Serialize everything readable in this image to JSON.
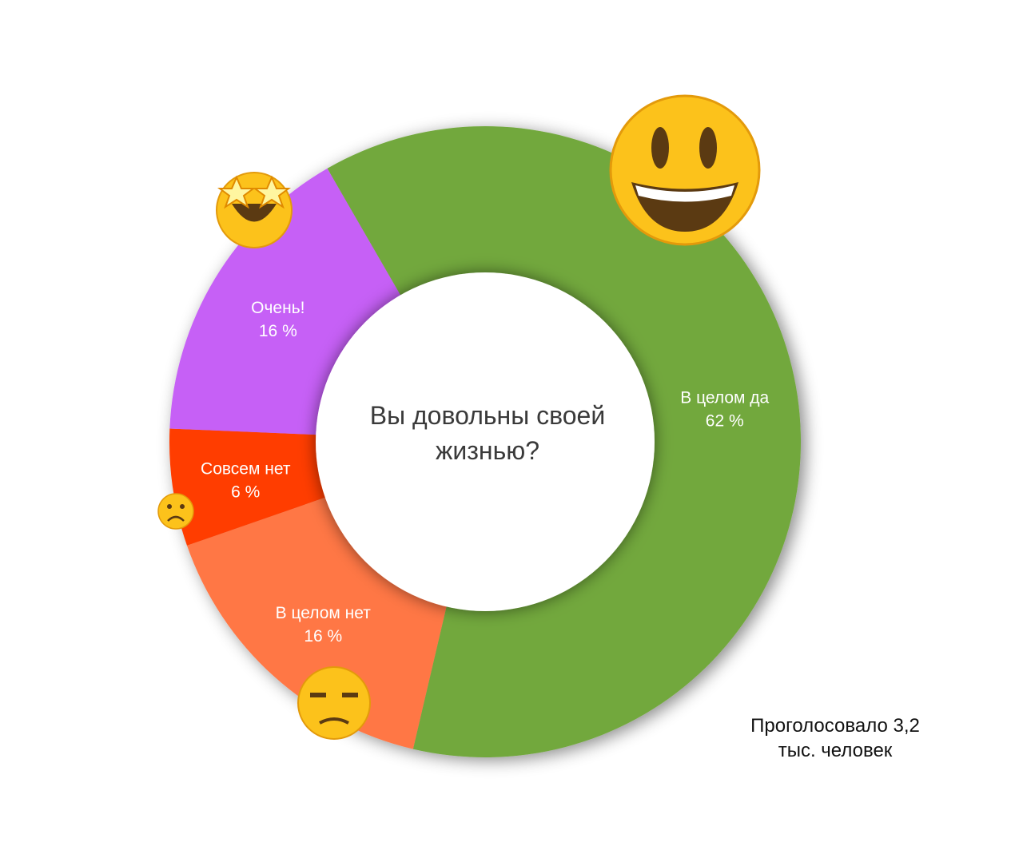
{
  "chart_data": {
    "type": "donut",
    "title": "Вы довольны своей жизнью?",
    "categories": [
      "В целом да",
      "В целом нет",
      "Совсем нет",
      "Очень!"
    ],
    "values": [
      62,
      16,
      6,
      16
    ],
    "value_labels": [
      "62 %",
      "16 %",
      "6 %",
      "16 %"
    ],
    "colors": [
      "#72a83e",
      "#ff7745",
      "#ff3d00",
      "#c660f6"
    ],
    "note": "Проголосовало 3,2 тыс. человек"
  }
}
